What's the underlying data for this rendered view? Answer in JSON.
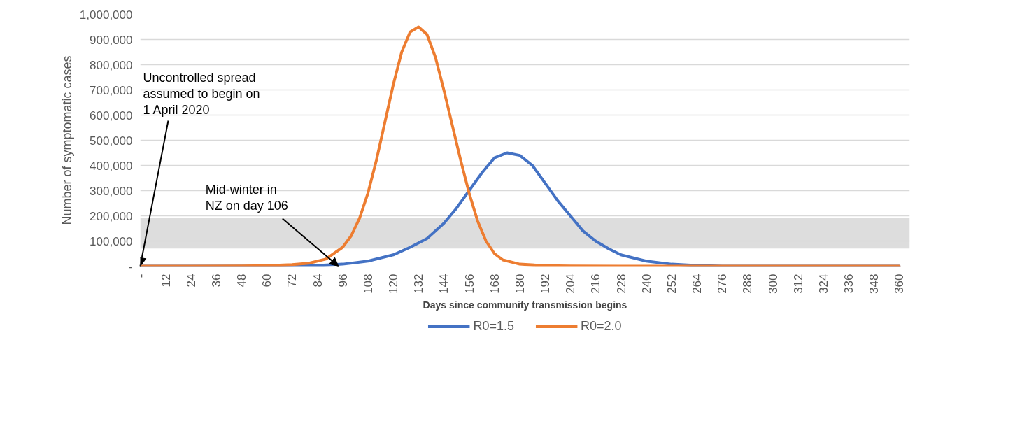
{
  "chart_data": {
    "type": "line",
    "xlabel": "Days since community transmission begins",
    "ylabel": "Number of symptomatic cases",
    "xlim": [
      0,
      365
    ],
    "ylim": [
      0,
      1000000
    ],
    "xticks": [
      {
        "value": 0,
        "label": "-"
      },
      12,
      24,
      36,
      48,
      60,
      72,
      84,
      96,
      108,
      120,
      132,
      144,
      156,
      168,
      180,
      192,
      204,
      216,
      228,
      240,
      252,
      264,
      276,
      288,
      300,
      312,
      324,
      336,
      348,
      360
    ],
    "yticks": [
      {
        "value": 0,
        "label": "-"
      },
      {
        "value": 100000,
        "label": "100,000"
      },
      {
        "value": 200000,
        "label": "200,000"
      },
      {
        "value": 300000,
        "label": "300,000"
      },
      {
        "value": 400000,
        "label": "400,000"
      },
      {
        "value": 500000,
        "label": "500,000"
      },
      {
        "value": 600000,
        "label": "600,000"
      },
      {
        "value": 700000,
        "label": "700,000"
      },
      {
        "value": 800000,
        "label": "800,000"
      },
      {
        "value": 900000,
        "label": "900,000"
      },
      {
        "value": 1000000,
        "label": "1,000,000"
      }
    ],
    "grid": "y",
    "legend": "bottom",
    "series": [
      {
        "name": "R0=1.5",
        "color": "#4472c4",
        "x": [
          0,
          60,
          72,
          84,
          96,
          108,
          120,
          128,
          136,
          144,
          150,
          156,
          162,
          168,
          174,
          180,
          186,
          192,
          198,
          204,
          210,
          216,
          222,
          228,
          240,
          252,
          264,
          276,
          360
        ],
        "values": [
          0,
          0,
          1000,
          3000,
          8000,
          20000,
          45000,
          75000,
          110000,
          170000,
          230000,
          300000,
          370000,
          430000,
          450000,
          440000,
          400000,
          330000,
          260000,
          200000,
          140000,
          100000,
          70000,
          45000,
          20000,
          8000,
          3000,
          0,
          0
        ]
      },
      {
        "name": "R0=2.0",
        "color": "#ed7d31",
        "x": [
          0,
          24,
          48,
          60,
          72,
          80,
          88,
          96,
          100,
          104,
          108,
          112,
          116,
          120,
          124,
          128,
          132,
          136,
          140,
          144,
          148,
          152,
          156,
          160,
          164,
          168,
          172,
          180,
          192,
          204,
          228,
          360
        ],
        "values": [
          0,
          0,
          500,
          2000,
          6000,
          12000,
          28000,
          75000,
          120000,
          190000,
          290000,
          420000,
          570000,
          720000,
          850000,
          930000,
          950000,
          920000,
          830000,
          700000,
          560000,
          420000,
          290000,
          180000,
          100000,
          50000,
          25000,
          8000,
          2000,
          500,
          0,
          0
        ]
      }
    ],
    "bands": [
      {
        "axis": "y",
        "from": 70000,
        "to": 190000,
        "color": "#d9d9d9"
      }
    ],
    "annotations": [
      {
        "text": "Uncontrolled spread assumed to begin on 1 April 2020",
        "x": 0,
        "y": 0
      },
      {
        "text": "Mid-winter in NZ on day 106",
        "x": 94,
        "y": 0
      }
    ]
  }
}
